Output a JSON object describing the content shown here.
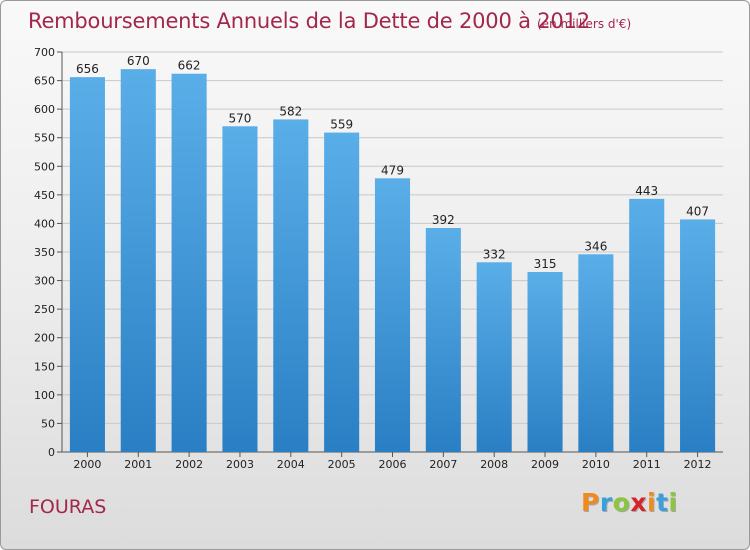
{
  "title": "Remboursements Annuels de la Dette de 2000 à 2012",
  "subtitle": "(en milliers d'€)",
  "commune": "FOURAS",
  "logo": {
    "letters": [
      "P",
      "r",
      "o",
      "x",
      "i",
      "t",
      "i"
    ],
    "colors": [
      "#f08a1e",
      "#3aa0dc",
      "#8cc63e",
      "#d8232a",
      "#f08a1e",
      "#3aa0dc",
      "#8cc63e"
    ]
  },
  "colors": {
    "title": "#a3264b",
    "bar_top": "#5aaee8",
    "bar_bottom": "#2a7fc4"
  },
  "chart_data": {
    "type": "bar",
    "title": "Remboursements Annuels de la Dette de 2000 à 2012",
    "subtitle": "(en milliers d'€)",
    "categories": [
      "2000",
      "2001",
      "2002",
      "2003",
      "2004",
      "2005",
      "2006",
      "2007",
      "2008",
      "2009",
      "2010",
      "2011",
      "2012"
    ],
    "values": [
      656,
      670,
      662,
      570,
      582,
      559,
      479,
      392,
      332,
      315,
      346,
      443,
      407
    ],
    "ylim": [
      0,
      700
    ],
    "yticks": [
      0,
      50,
      100,
      150,
      200,
      250,
      300,
      350,
      400,
      450,
      500,
      550,
      600,
      650,
      700
    ],
    "grid": true,
    "data_labels": true
  }
}
